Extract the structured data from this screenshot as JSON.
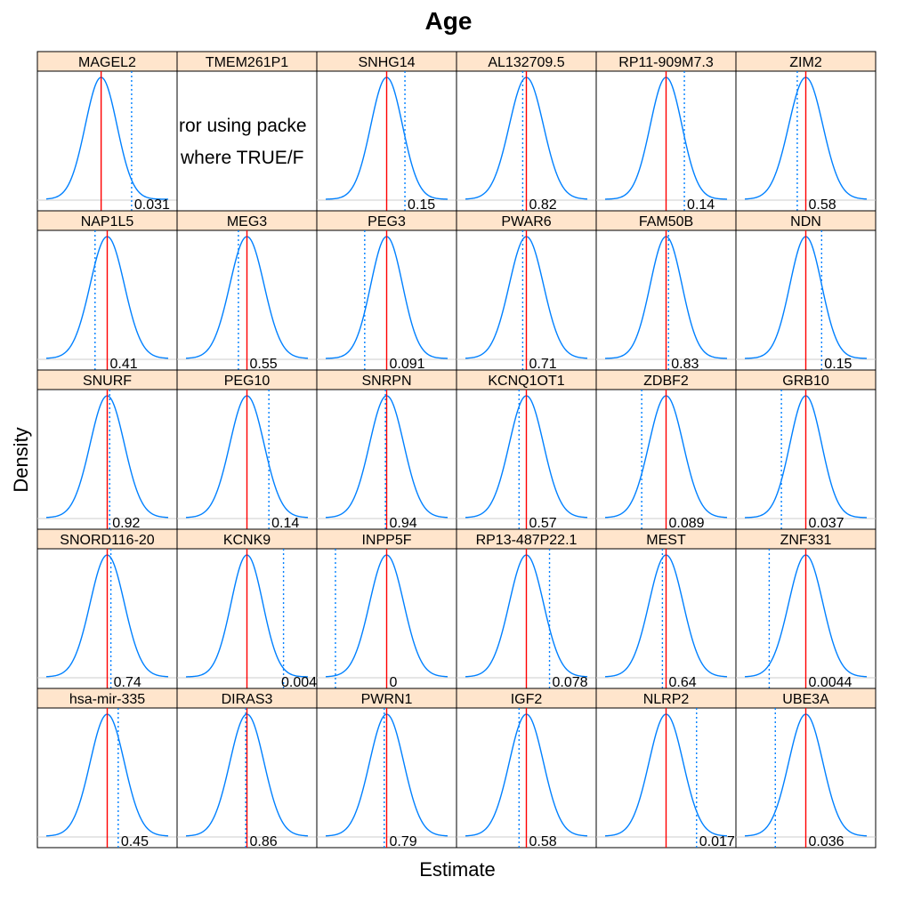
{
  "chart_data": {
    "type": "density-grid",
    "title": "Age",
    "xlabel": "Estimate",
    "ylabel": "Density",
    "reference_line": "solid red vertical line (observed estimate)",
    "null_line": "dotted blue vertical line",
    "error_message": [
      "ror using packe",
      "where TRUE/F"
    ],
    "colors": {
      "density": "#0080ff",
      "observed": "#ff0000",
      "null": "#0080ff",
      "strip_fill": "#ffe5cc",
      "strip_border": "#000000",
      "baseline": "#cccccc"
    },
    "layout": {
      "rows": 5,
      "cols": 6
    },
    "panels": [
      {
        "label": "MAGEL2",
        "p": "0.031",
        "observed": -0.05,
        "null_value": 0.2,
        "sd": 0.13,
        "has_density": true
      },
      {
        "label": "TMEM261P1",
        "p": "",
        "observed": null,
        "null_value": null,
        "sd": null,
        "has_density": false
      },
      {
        "label": "SNHG14",
        "p": "0.15",
        "observed": 0.0,
        "null_value": 0.15,
        "sd": 0.13,
        "has_density": true
      },
      {
        "label": "AL132709.5",
        "p": "0.82",
        "observed": 0.0,
        "null_value": -0.03,
        "sd": 0.14,
        "has_density": true
      },
      {
        "label": "RP11-909M7.3",
        "p": "0.14",
        "observed": 0.0,
        "null_value": 0.15,
        "sd": 0.13,
        "has_density": true
      },
      {
        "label": "ZIM2",
        "p": "0.58",
        "observed": 0.0,
        "null_value": -0.07,
        "sd": 0.14,
        "has_density": true
      },
      {
        "label": "NAP1L5",
        "p": "0.41",
        "observed": 0.0,
        "null_value": -0.1,
        "sd": 0.14,
        "has_density": true
      },
      {
        "label": "MEG3",
        "p": "0.55",
        "observed": 0.0,
        "null_value": -0.07,
        "sd": 0.14,
        "has_density": true
      },
      {
        "label": "PEG3",
        "p": "0.091",
        "observed": 0.0,
        "null_value": -0.18,
        "sd": 0.13,
        "has_density": true
      },
      {
        "label": "PWAR6",
        "p": "0.71",
        "observed": 0.0,
        "null_value": -0.03,
        "sd": 0.14,
        "has_density": true
      },
      {
        "label": "FAM50B",
        "p": "0.83",
        "observed": 0.0,
        "null_value": 0.02,
        "sd": 0.13,
        "has_density": true
      },
      {
        "label": "NDN",
        "p": "0.15",
        "observed": 0.0,
        "null_value": 0.13,
        "sd": 0.13,
        "has_density": true
      },
      {
        "label": "SNURF",
        "p": "0.92",
        "observed": 0.0,
        "null_value": 0.02,
        "sd": 0.14,
        "has_density": true
      },
      {
        "label": "PEG10",
        "p": "0.14",
        "observed": 0.0,
        "null_value": 0.18,
        "sd": 0.14,
        "has_density": true
      },
      {
        "label": "SNRPN",
        "p": "0.94",
        "observed": 0.0,
        "null_value": -0.01,
        "sd": 0.14,
        "has_density": true
      },
      {
        "label": "KCNQ1OT1",
        "p": "0.57",
        "observed": 0.0,
        "null_value": -0.06,
        "sd": 0.14,
        "has_density": true
      },
      {
        "label": "ZDBF2",
        "p": "0.089",
        "observed": 0.0,
        "null_value": -0.2,
        "sd": 0.14,
        "has_density": true
      },
      {
        "label": "GRB10",
        "p": "0.037",
        "observed": 0.0,
        "null_value": -0.2,
        "sd": 0.13,
        "has_density": true
      },
      {
        "label": "SNORD116-20",
        "p": "0.74",
        "observed": 0.0,
        "null_value": 0.03,
        "sd": 0.14,
        "has_density": true
      },
      {
        "label": "KCNK9",
        "p": "0.004",
        "observed": 0.0,
        "null_value": 0.3,
        "sd": 0.13,
        "has_density": true
      },
      {
        "label": "INPP5F",
        "p": "0",
        "observed": 0.0,
        "null_value": -0.42,
        "sd": 0.14,
        "has_density": true
      },
      {
        "label": "RP13-487P22.1",
        "p": "0.078",
        "observed": 0.0,
        "null_value": 0.19,
        "sd": 0.14,
        "has_density": true
      },
      {
        "label": "MEST",
        "p": "0.64",
        "observed": 0.0,
        "null_value": -0.03,
        "sd": 0.14,
        "has_density": true
      },
      {
        "label": "ZNF331",
        "p": "0.0044",
        "observed": 0.0,
        "null_value": -0.3,
        "sd": 0.14,
        "has_density": true
      },
      {
        "label": "hsa-mir-335",
        "p": "0.45",
        "observed": 0.0,
        "null_value": 0.09,
        "sd": 0.14,
        "has_density": true
      },
      {
        "label": "DIRAS3",
        "p": "0.86",
        "observed": 0.0,
        "null_value": -0.01,
        "sd": 0.14,
        "has_density": true
      },
      {
        "label": "PWRN1",
        "p": "0.79",
        "observed": 0.0,
        "null_value": -0.02,
        "sd": 0.14,
        "has_density": true
      },
      {
        "label": "IGF2",
        "p": "0.58",
        "observed": 0.0,
        "null_value": -0.06,
        "sd": 0.14,
        "has_density": true
      },
      {
        "label": "NLRP2",
        "p": "0.017",
        "observed": 0.0,
        "null_value": 0.25,
        "sd": 0.14,
        "has_density": true
      },
      {
        "label": "UBE3A",
        "p": "0.036",
        "observed": 0.0,
        "null_value": -0.25,
        "sd": 0.14,
        "has_density": true
      }
    ]
  }
}
